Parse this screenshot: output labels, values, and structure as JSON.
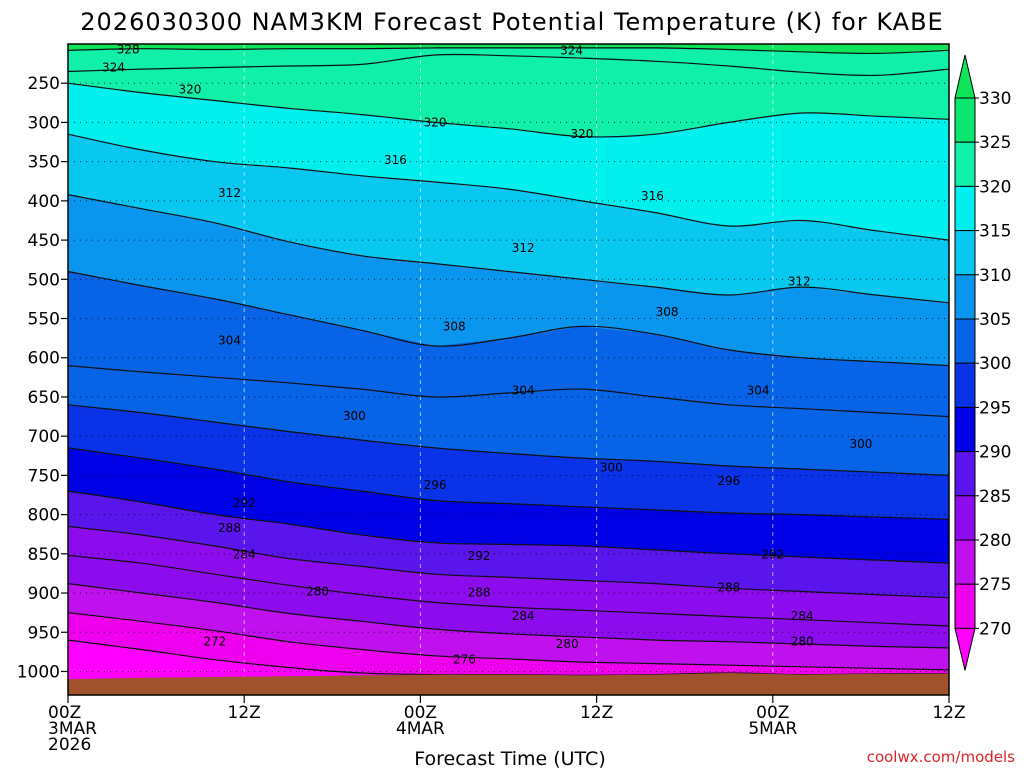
{
  "chart_data": {
    "type": "heatmap",
    "title": "2026030300 NAM3KM Forecast Potential Temperature (K) for KABE",
    "xlabel": "Forecast Time (UTC)",
    "credit": "coolwx.com/models",
    "y_axis": {
      "quantity": "pressure",
      "ylim": [
        1030,
        200
      ],
      "tick_values": [
        250,
        300,
        350,
        400,
        450,
        500,
        550,
        600,
        650,
        700,
        750,
        800,
        850,
        900,
        950,
        1000
      ],
      "tick_labels": [
        "250",
        "300",
        "350",
        "400",
        "450",
        "500",
        "550",
        "600",
        "650",
        "700",
        "750",
        "800",
        "850",
        "900",
        "950",
        "1000"
      ]
    },
    "x_axis": {
      "quantity": "forecast hour",
      "xlim": [
        0,
        60
      ],
      "ticks": [
        {
          "hour": 0,
          "lines": [
            "00Z",
            "3MAR",
            "2026"
          ]
        },
        {
          "hour": 12,
          "lines": [
            "12Z"
          ]
        },
        {
          "hour": 24,
          "lines": [
            "00Z",
            "4MAR"
          ]
        },
        {
          "hour": 36,
          "lines": [
            "12Z"
          ]
        },
        {
          "hour": 48,
          "lines": [
            "00Z",
            "5MAR"
          ]
        },
        {
          "hour": 60,
          "lines": [
            "12Z"
          ]
        }
      ]
    },
    "colorbar": {
      "labels": [
        "330",
        "325",
        "320",
        "315",
        "310",
        "305",
        "300",
        "295",
        "290",
        "285",
        "280",
        "275",
        "270"
      ],
      "bins": [
        {
          "min": 325,
          "max": 330,
          "color": "#0ae66e"
        },
        {
          "min": 320,
          "max": 325,
          "color": "#10f0a8"
        },
        {
          "min": 315,
          "max": 320,
          "color": "#00f0ee"
        },
        {
          "min": 310,
          "max": 315,
          "color": "#08c8f0"
        },
        {
          "min": 305,
          "max": 310,
          "color": "#0a96ee"
        },
        {
          "min": 300,
          "max": 305,
          "color": "#0864e6"
        },
        {
          "min": 295,
          "max": 300,
          "color": "#0a32e6"
        },
        {
          "min": 290,
          "max": 295,
          "color": "#0000e6"
        },
        {
          "min": 285,
          "max": 290,
          "color": "#5a14ec"
        },
        {
          "min": 280,
          "max": 285,
          "color": "#8c0cee"
        },
        {
          "min": 275,
          "max": 280,
          "color": "#c010ee"
        },
        {
          "min": 270,
          "max": 275,
          "color": "#ee00ee"
        }
      ],
      "top_color": "#10e45a",
      "bottom_color": "#ff00ff"
    },
    "ground_color": "#a0522d",
    "surface_pressure": [
      1010,
      1008,
      1007,
      1006,
      1005,
      1004,
      1004,
      1005,
      1004,
      1002,
      1004,
      1003,
      1003
    ],
    "profile_hours": [
      0,
      5,
      10,
      15,
      20,
      25,
      30,
      35,
      40,
      45,
      50,
      55,
      60
    ],
    "contour_levels": [
      272,
      276,
      280,
      284,
      288,
      292,
      296,
      300,
      304,
      308,
      312,
      316,
      320,
      324,
      328
    ],
    "isentrope_pressure": {
      "328": [
        208,
        206,
        207,
        206,
        206,
        205,
        205,
        205,
        205,
        207,
        210,
        212,
        208
      ],
      "324": [
        235,
        232,
        230,
        228,
        226,
        214,
        215,
        218,
        222,
        228,
        236,
        240,
        232
      ],
      "320": [
        250,
        262,
        272,
        282,
        290,
        300,
        308,
        318,
        315,
        300,
        288,
        292,
        296
      ],
      "316": [
        315,
        335,
        350,
        358,
        368,
        376,
        385,
        400,
        415,
        432,
        425,
        438,
        450
      ],
      "312": [
        392,
        410,
        428,
        452,
        470,
        480,
        490,
        500,
        510,
        520,
        510,
        520,
        530
      ],
      "308": [
        490,
        508,
        525,
        545,
        565,
        585,
        575,
        560,
        570,
        590,
        600,
        605,
        610
      ],
      "304": [
        610,
        618,
        625,
        632,
        640,
        650,
        645,
        640,
        650,
        660,
        665,
        670,
        675
      ],
      "300": [
        660,
        670,
        682,
        694,
        705,
        715,
        722,
        728,
        732,
        738,
        742,
        746,
        750
      ],
      "296": [
        715,
        728,
        742,
        758,
        770,
        782,
        786,
        790,
        794,
        798,
        800,
        803,
        806
      ],
      "292": [
        770,
        784,
        800,
        812,
        826,
        836,
        838,
        840,
        845,
        850,
        854,
        858,
        862
      ],
      "288": [
        815,
        826,
        840,
        856,
        866,
        876,
        880,
        884,
        888,
        894,
        898,
        902,
        906
      ],
      "284": [
        852,
        862,
        876,
        890,
        902,
        912,
        918,
        922,
        926,
        930,
        934,
        938,
        942
      ],
      "280": [
        888,
        900,
        912,
        926,
        936,
        946,
        952,
        956,
        960,
        962,
        965,
        968,
        970
      ],
      "276": [
        925,
        936,
        948,
        962,
        972,
        980,
        984,
        988,
        990,
        992,
        994,
        996,
        998
      ],
      "272": [
        960,
        972,
        985,
        995,
        1002,
        1004,
        1004,
        1005,
        1004,
        1002,
        1004,
        1003,
        1003
      ]
    },
    "contour_labels": [
      {
        "text": "328",
        "hour": 4.1,
        "pressure": 207
      },
      {
        "text": "324",
        "hour": 3.1,
        "pressure": 230
      },
      {
        "text": "324",
        "hour": 34.3,
        "pressure": 208
      },
      {
        "text": "320",
        "hour": 8.3,
        "pressure": 258
      },
      {
        "text": "320",
        "hour": 25.0,
        "pressure": 300
      },
      {
        "text": "320",
        "hour": 35.0,
        "pressure": 315
      },
      {
        "text": "316",
        "hour": 22.3,
        "pressure": 348
      },
      {
        "text": "316",
        "hour": 39.8,
        "pressure": 394
      },
      {
        "text": "312",
        "hour": 11.0,
        "pressure": 390
      },
      {
        "text": "312",
        "hour": 31.0,
        "pressure": 460
      },
      {
        "text": "312",
        "hour": 49.8,
        "pressure": 503
      },
      {
        "text": "308",
        "hour": 26.3,
        "pressure": 560
      },
      {
        "text": "308",
        "hour": 40.8,
        "pressure": 542
      },
      {
        "text": "304",
        "hour": 11.0,
        "pressure": 578
      },
      {
        "text": "304",
        "hour": 31.0,
        "pressure": 642
      },
      {
        "text": "304",
        "hour": 47.0,
        "pressure": 642
      },
      {
        "text": "300",
        "hour": 19.5,
        "pressure": 674
      },
      {
        "text": "300",
        "hour": 37.0,
        "pressure": 740
      },
      {
        "text": "300",
        "hour": 54.0,
        "pressure": 710
      },
      {
        "text": "296",
        "hour": 25.0,
        "pressure": 762
      },
      {
        "text": "296",
        "hour": 45.0,
        "pressure": 757
      },
      {
        "text": "292",
        "hour": 12.0,
        "pressure": 785
      },
      {
        "text": "292",
        "hour": 28.0,
        "pressure": 853
      },
      {
        "text": "292",
        "hour": 48.0,
        "pressure": 851
      },
      {
        "text": "288",
        "hour": 11.0,
        "pressure": 817
      },
      {
        "text": "288",
        "hour": 28.0,
        "pressure": 899
      },
      {
        "text": "288",
        "hour": 45.0,
        "pressure": 893
      },
      {
        "text": "284",
        "hour": 12.0,
        "pressure": 851
      },
      {
        "text": "284",
        "hour": 31.0,
        "pressure": 929
      },
      {
        "text": "284",
        "hour": 50.0,
        "pressure": 929
      },
      {
        "text": "280",
        "hour": 17.0,
        "pressure": 898
      },
      {
        "text": "280",
        "hour": 34.0,
        "pressure": 965
      },
      {
        "text": "280",
        "hour": 50.0,
        "pressure": 962
      },
      {
        "text": "276",
        "hour": 27.0,
        "pressure": 985
      },
      {
        "text": "272",
        "hour": 10.0,
        "pressure": 962
      }
    ]
  }
}
